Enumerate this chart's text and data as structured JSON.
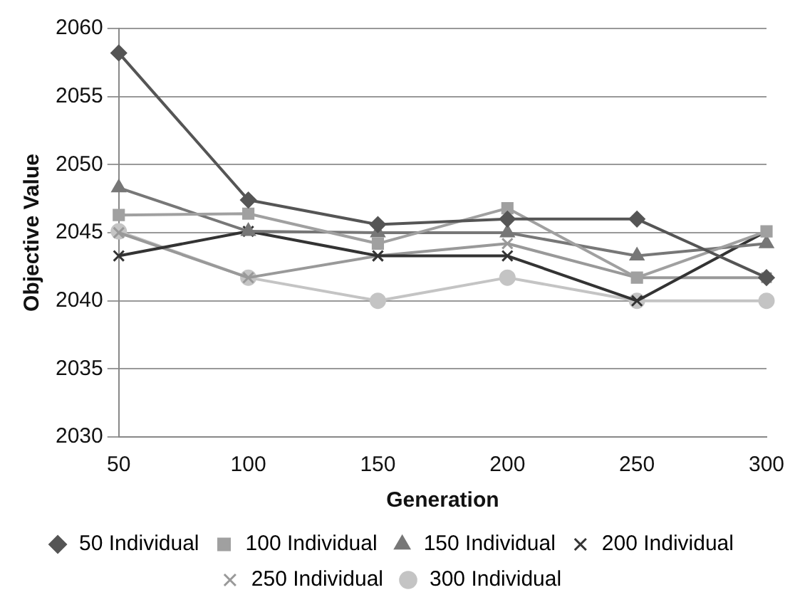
{
  "chart_data": {
    "type": "line",
    "xlabel": "Generation",
    "ylabel": "Objective Value",
    "categories": [
      "50",
      "100",
      "150",
      "200",
      "250",
      "300"
    ],
    "ylim": [
      2030,
      2060
    ],
    "yticks": [
      2030,
      2035,
      2040,
      2045,
      2050,
      2055,
      2060
    ],
    "grid": "y",
    "legend": "bottom",
    "line_style": "solid",
    "series": [
      {
        "name": "50 Individual",
        "color": "#555555",
        "marker": "diamond",
        "values": [
          2058.2,
          2047.4,
          2045.6,
          2046,
          2046,
          2041.7
        ]
      },
      {
        "name": "100 Individual",
        "color": "#a0a0a0",
        "marker": "square",
        "values": [
          2046.3,
          2046.4,
          2044.2,
          2046.8,
          2041.7,
          2045.1
        ]
      },
      {
        "name": "150 Individual",
        "color": "#777777",
        "marker": "triangle",
        "values": [
          2048.3,
          2045.1,
          2045,
          2045,
          2043.3,
          2044.2
        ]
      },
      {
        "name": "200 Individual",
        "color": "#333333",
        "marker": "cross",
        "values": [
          2043.3,
          2045.1,
          2043.3,
          2043.3,
          2040,
          2045.1
        ]
      },
      {
        "name": "250 Individual",
        "color": "#999999",
        "marker": "cross",
        "values": [
          2045,
          2041.7,
          2043.3,
          2044.2,
          2041.7,
          2041.7
        ]
      },
      {
        "name": "300 Individual",
        "color": "#c4c4c4",
        "marker": "circle",
        "values": [
          2045.1,
          2041.7,
          2040,
          2041.7,
          2040,
          2040
        ]
      }
    ]
  }
}
